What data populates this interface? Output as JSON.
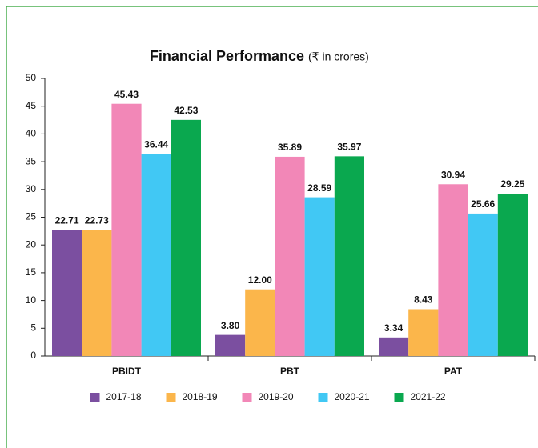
{
  "chart_data": {
    "type": "bar",
    "title": "Financial Performance",
    "subtitle": "(₹ in crores)",
    "categories": [
      "PBIDT",
      "PBT",
      "PAT"
    ],
    "series": [
      {
        "name": "2017-18",
        "color": "#7b4fa0",
        "values": [
          22.71,
          3.8,
          3.34
        ],
        "value_labels": [
          "22.71",
          "3.80",
          "3.34"
        ]
      },
      {
        "name": "2018-19",
        "color": "#fbb64b",
        "values": [
          22.73,
          12,
          8.43
        ],
        "value_labels": [
          "22.73",
          "12.00",
          "8.43"
        ]
      },
      {
        "name": "2019-20",
        "color": "#f287b7",
        "values": [
          45.43,
          35.89,
          30.94
        ],
        "value_labels": [
          "45.43",
          "35.89",
          "30.94"
        ]
      },
      {
        "name": "2020-21",
        "color": "#41c8f4",
        "values": [
          36.44,
          28.59,
          25.66
        ],
        "value_labels": [
          "36.44",
          "28.59",
          "25.66"
        ]
      },
      {
        "name": "2021-22",
        "color": "#0aa84f",
        "values": [
          42.53,
          35.97,
          29.25
        ],
        "value_labels": [
          "42.53",
          "35.97",
          "29.25"
        ]
      }
    ],
    "ylim": [
      0,
      50
    ],
    "yticks": [
      0,
      5,
      10,
      15,
      20,
      25,
      30,
      35,
      40,
      45,
      50
    ],
    "legend": "bottom"
  }
}
